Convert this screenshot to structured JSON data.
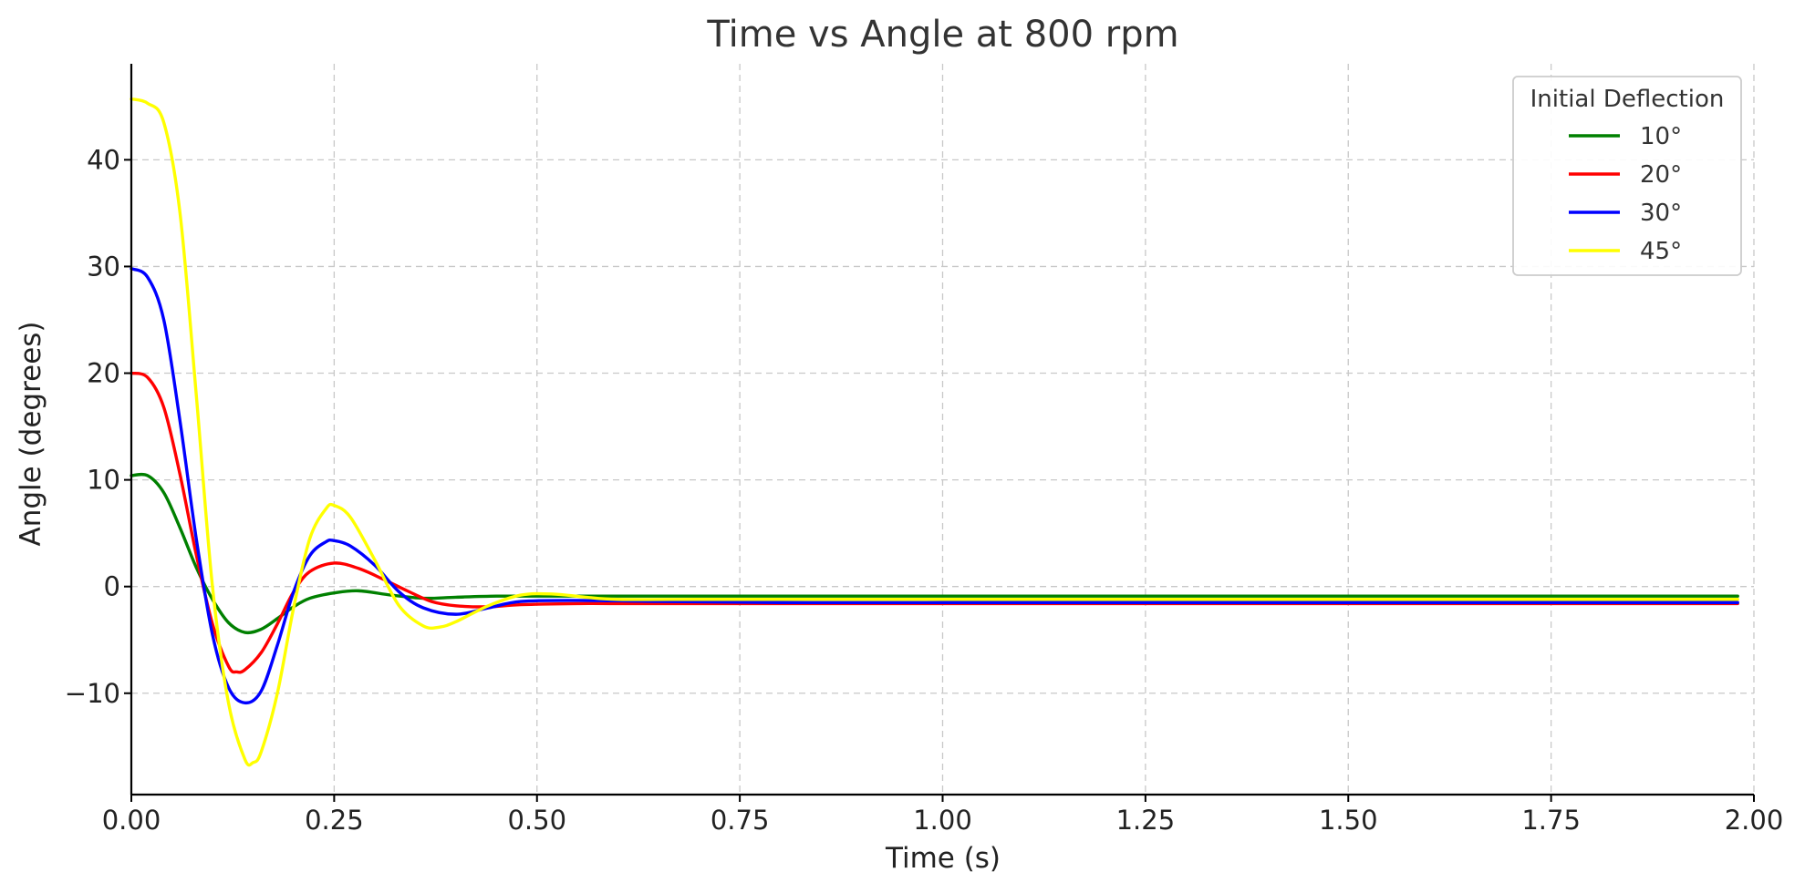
{
  "chart_data": {
    "type": "line",
    "title": "Time vs Angle at 800 rpm",
    "xlabel": "Time (s)",
    "ylabel": "Angle (degrees)",
    "xlim": [
      0,
      2.0
    ],
    "ylim": [
      -19.5,
      49
    ],
    "x_ticks": [
      0,
      0.25,
      0.5,
      0.75,
      1.0,
      1.25,
      1.5,
      1.75,
      2.0
    ],
    "x_tick_labels": [
      "0.00",
      "0.25",
      "0.50",
      "0.75",
      "1.00",
      "1.25",
      "1.50",
      "1.75",
      "2.00"
    ],
    "y_ticks": [
      -10,
      0,
      10,
      20,
      30,
      40
    ],
    "y_tick_labels": [
      "−10",
      "0",
      "10",
      "20",
      "30",
      "40"
    ],
    "grid": true,
    "legend": {
      "title": "Initial Deflection",
      "position": "top-right"
    },
    "series": [
      {
        "name": "10°",
        "color": "#008000",
        "x": [
          0,
          0.02,
          0.04,
          0.06,
          0.08,
          0.1,
          0.12,
          0.14,
          0.16,
          0.18,
          0.2,
          0.22,
          0.25,
          0.28,
          0.32,
          0.36,
          0.4,
          0.45,
          0.5,
          0.6,
          0.8,
          1.0,
          1.5,
          1.98
        ],
        "y": [
          10.4,
          10.4,
          8.8,
          5.5,
          1.8,
          -1.2,
          -3.4,
          -4.3,
          -4.0,
          -3.0,
          -1.9,
          -1.1,
          -0.6,
          -0.4,
          -0.8,
          -1.1,
          -1.0,
          -0.9,
          -0.9,
          -0.9,
          -0.9,
          -0.9,
          -0.9,
          -0.9
        ]
      },
      {
        "name": "20°",
        "color": "#ff0000",
        "x": [
          0,
          0.02,
          0.04,
          0.06,
          0.08,
          0.1,
          0.12,
          0.13,
          0.14,
          0.16,
          0.18,
          0.2,
          0.22,
          0.25,
          0.28,
          0.31,
          0.34,
          0.37,
          0.4,
          0.44,
          0.48,
          0.55,
          0.6,
          0.8,
          1.0,
          1.5,
          1.98
        ],
        "y": [
          20.0,
          19.6,
          16.8,
          10.5,
          3.0,
          -3.5,
          -7.5,
          -8.0,
          -7.8,
          -6.2,
          -3.5,
          -0.5,
          1.4,
          2.2,
          1.7,
          0.7,
          -0.4,
          -1.4,
          -1.8,
          -1.9,
          -1.7,
          -1.6,
          -1.6,
          -1.6,
          -1.6,
          -1.6,
          -1.6
        ]
      },
      {
        "name": "30°",
        "color": "#0000ff",
        "x": [
          0,
          0.02,
          0.04,
          0.06,
          0.08,
          0.1,
          0.12,
          0.14,
          0.16,
          0.18,
          0.2,
          0.22,
          0.24,
          0.25,
          0.27,
          0.3,
          0.33,
          0.36,
          0.4,
          0.44,
          0.48,
          0.55,
          0.65,
          0.8,
          1.0,
          1.5,
          1.98
        ],
        "y": [
          29.8,
          29.0,
          25.0,
          15.5,
          4.5,
          -4.5,
          -9.5,
          -10.9,
          -9.8,
          -5.5,
          -0.5,
          2.9,
          4.2,
          4.3,
          3.8,
          2.0,
          -0.5,
          -2.0,
          -2.6,
          -2.0,
          -1.4,
          -1.3,
          -1.4,
          -1.5,
          -1.5,
          -1.5,
          -1.5
        ]
      },
      {
        "name": "45°",
        "color": "#ffff00",
        "x": [
          0,
          0.02,
          0.04,
          0.06,
          0.08,
          0.1,
          0.12,
          0.14,
          0.15,
          0.16,
          0.18,
          0.2,
          0.22,
          0.24,
          0.25,
          0.27,
          0.3,
          0.33,
          0.36,
          0.38,
          0.4,
          0.44,
          0.48,
          0.52,
          0.56,
          0.6,
          0.7,
          0.8,
          1.0,
          1.5,
          1.98
        ],
        "y": [
          45.7,
          45.3,
          43.5,
          35.0,
          18.0,
          0.0,
          -11.0,
          -16.2,
          -16.5,
          -15.5,
          -10.0,
          -2.0,
          4.5,
          7.3,
          7.6,
          6.5,
          2.5,
          -1.8,
          -3.7,
          -3.8,
          -3.3,
          -1.8,
          -0.8,
          -0.7,
          -1.0,
          -1.2,
          -1.2,
          -1.2,
          -1.2,
          -1.2,
          -1.2
        ]
      }
    ]
  }
}
